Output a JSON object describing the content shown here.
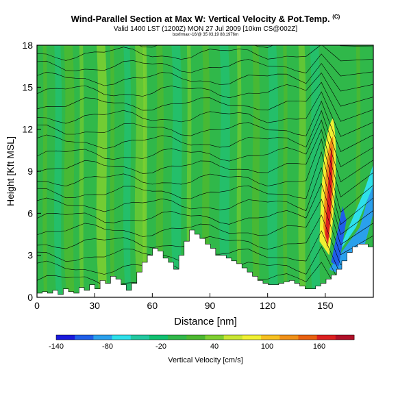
{
  "chart_data": {
    "type": "heatmap",
    "title": "Wind-Parallel Section at Max W: Vertical Velocity & Pot.Temp.",
    "title_mark": "(C)",
    "subtitle": "Valid 1400 LST (1200Z) MON 27 Jul 2009 [10km CS@002Z]",
    "info_line": "boxfrmax~16/@ 35 03,19 88,1976m",
    "xlabel": "Distance [nm]",
    "ylabel": "Height [Kft MSL]",
    "xlim": [
      0,
      175
    ],
    "ylim": [
      0,
      18
    ],
    "xticks": [
      0,
      30,
      60,
      90,
      120,
      150
    ],
    "yticks": [
      0,
      3,
      6,
      9,
      12,
      15,
      18
    ],
    "colorbar": {
      "label": "Vertical Velocity [cm/s]",
      "tick_labels": [
        "-140",
        "-80",
        "-20",
        "40",
        "100",
        "160"
      ],
      "colors": [
        "#1a1adc",
        "#1f5ee8",
        "#2aa0ec",
        "#2ee0ea",
        "#22c8a0",
        "#10c070",
        "#30b84a",
        "#4cb830",
        "#7ecf30",
        "#c9e632",
        "#f0f032",
        "#f6c020",
        "#f09018",
        "#e86010",
        "#dc2020",
        "#b01028"
      ]
    },
    "terrain_heights_kft": [
      0.3,
      0.4,
      0.3,
      0.5,
      0.2,
      0.6,
      0.4,
      0.3,
      0.7,
      0.5,
      0.9,
      0.6,
      1.2,
      1.0,
      1.5,
      1.3,
      0.9,
      0.5,
      1.0,
      1.8,
      2.5,
      3.0,
      3.5,
      3.3,
      2.8,
      2.5,
      2.0,
      3.0,
      4.0,
      4.8,
      4.5,
      4.2,
      3.8,
      3.5,
      3.0,
      3.0,
      2.8,
      2.6,
      2.4,
      2.1,
      1.8,
      1.5,
      1.2,
      1.0,
      0.9,
      0.9,
      1.0,
      1.1,
      1.2,
      1.0,
      0.8,
      0.6,
      0.6,
      0.8,
      1.0,
      1.3,
      1.6,
      2.0,
      2.6,
      3.2,
      3.6,
      3.8,
      3.8,
      3.6
    ]
  }
}
